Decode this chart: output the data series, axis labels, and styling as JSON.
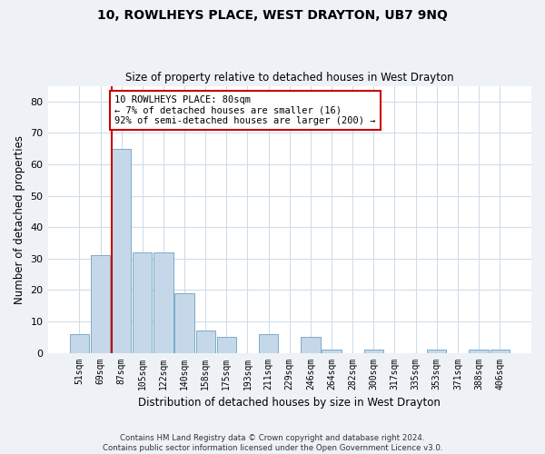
{
  "title": "10, ROWLHEYS PLACE, WEST DRAYTON, UB7 9NQ",
  "subtitle": "Size of property relative to detached houses in West Drayton",
  "xlabel": "Distribution of detached houses by size in West Drayton",
  "ylabel": "Number of detached properties",
  "bar_labels": [
    "51sqm",
    "69sqm",
    "87sqm",
    "105sqm",
    "122sqm",
    "140sqm",
    "158sqm",
    "175sqm",
    "193sqm",
    "211sqm",
    "229sqm",
    "246sqm",
    "264sqm",
    "282sqm",
    "300sqm",
    "317sqm",
    "335sqm",
    "353sqm",
    "371sqm",
    "388sqm",
    "406sqm"
  ],
  "bar_values": [
    6,
    31,
    65,
    32,
    32,
    19,
    7,
    5,
    0,
    6,
    0,
    5,
    1,
    0,
    1,
    0,
    0,
    1,
    0,
    1,
    1
  ],
  "bar_color": "#c5d8ea",
  "bar_edge_color": "#7aaac8",
  "annotation_text_line1": "10 ROWLHEYS PLACE: 80sqm",
  "annotation_text_line2": "← 7% of detached houses are smaller (16)",
  "annotation_text_line3": "92% of semi-detached houses are larger (200) →",
  "annotation_box_color": "#ffffff",
  "annotation_box_edge_color": "#cc0000",
  "red_line_color": "#cc0000",
  "ylim": [
    0,
    85
  ],
  "yticks": [
    0,
    10,
    20,
    30,
    40,
    50,
    60,
    70,
    80
  ],
  "footer_text": "Contains HM Land Registry data © Crown copyright and database right 2024.\nContains public sector information licensed under the Open Government Licence v3.0.",
  "bg_color": "#eef2f7",
  "plot_bg_color": "#ffffff",
  "grid_color": "#d0dce8"
}
